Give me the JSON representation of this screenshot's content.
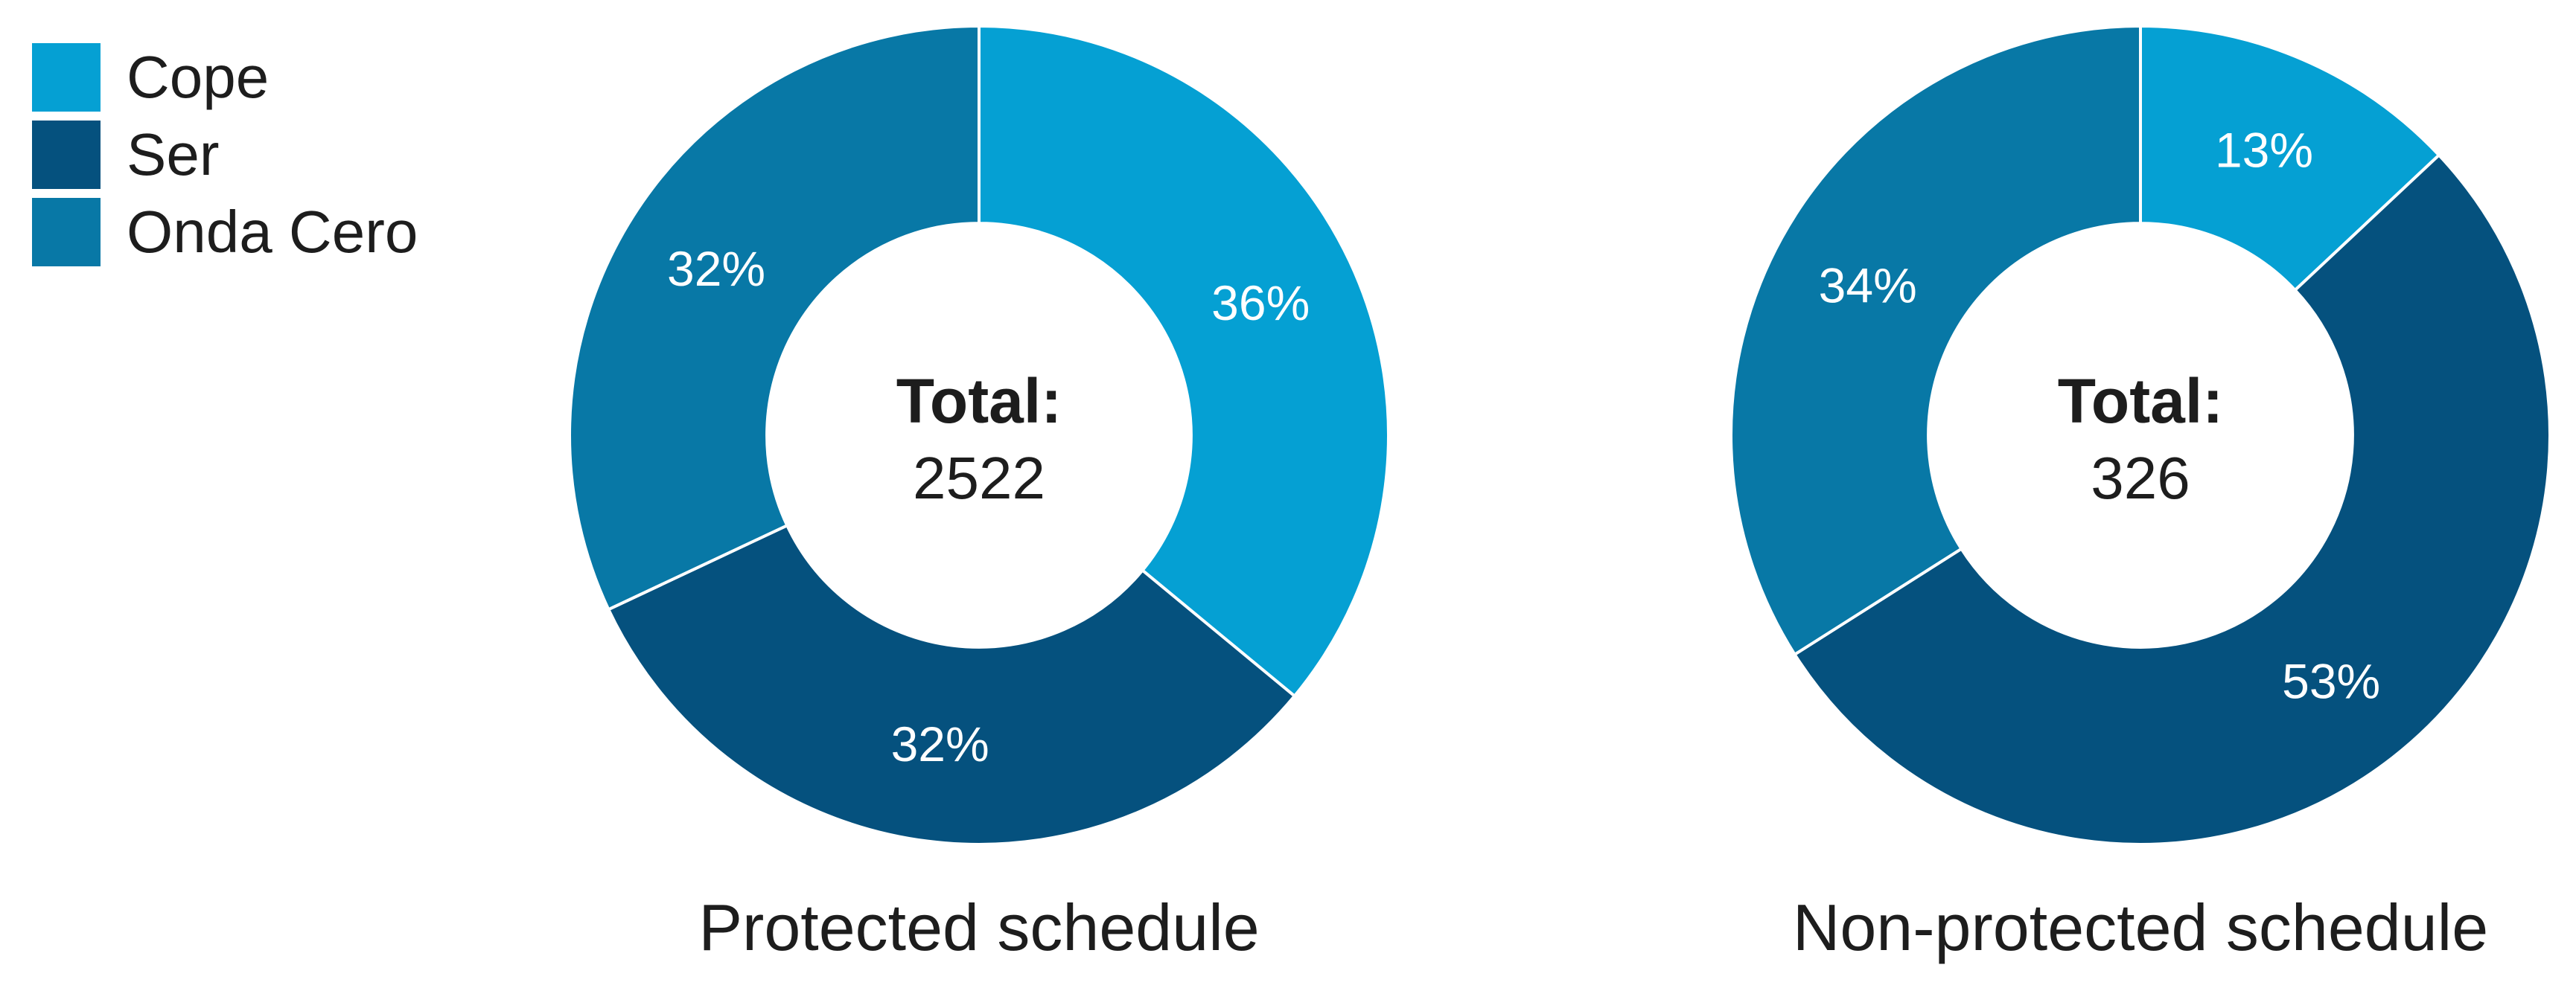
{
  "colors": {
    "cope": "#05A0D3",
    "ser": "#05517E",
    "onda_cero": "#0878A6",
    "slice_label": "#FFFFFF",
    "text_dark": "#1D1D1D",
    "background": "#FFFFFF"
  },
  "legend": {
    "position": "top-left",
    "items": [
      {
        "label": "Cope",
        "color": "#05A0D3"
      },
      {
        "label": "Ser",
        "color": "#05517E"
      },
      {
        "label": "Onda Cero",
        "color": "#0878A6"
      }
    ]
  },
  "chart_data": [
    {
      "type": "pie",
      "subtype": "donut",
      "title": "Protected schedule",
      "center_label": "Total:",
      "center_value": "2522",
      "total": 2522,
      "categories": [
        "Cope",
        "Ser",
        "Onda Cero"
      ],
      "values_percent": [
        36,
        32,
        32
      ],
      "slice_labels": [
        "36%",
        "32%",
        "32%"
      ],
      "colors": [
        "#05A0D3",
        "#05517E",
        "#0878A6"
      ],
      "start_angle_deg": 0,
      "direction": "clockwise",
      "inner_radius_ratio": 0.518,
      "label_radius_ratio": 0.76,
      "slice_label_color": "#FFFFFF",
      "legend_position": "top-left"
    },
    {
      "type": "pie",
      "subtype": "donut",
      "title": "Non-protected schedule",
      "center_label": "Total:",
      "center_value": "326",
      "total": 326,
      "categories": [
        "Cope",
        "Ser",
        "Onda Cero"
      ],
      "values_percent": [
        13,
        53,
        34
      ],
      "slice_labels": [
        "13%",
        "53%",
        "34%"
      ],
      "colors": [
        "#05A0D3",
        "#05517E",
        "#0878A6"
      ],
      "start_angle_deg": 0,
      "direction": "clockwise",
      "inner_radius_ratio": 0.518,
      "label_radius_ratio": 0.76,
      "slice_label_color": "#FFFFFF",
      "legend_position": "top-left"
    }
  ]
}
